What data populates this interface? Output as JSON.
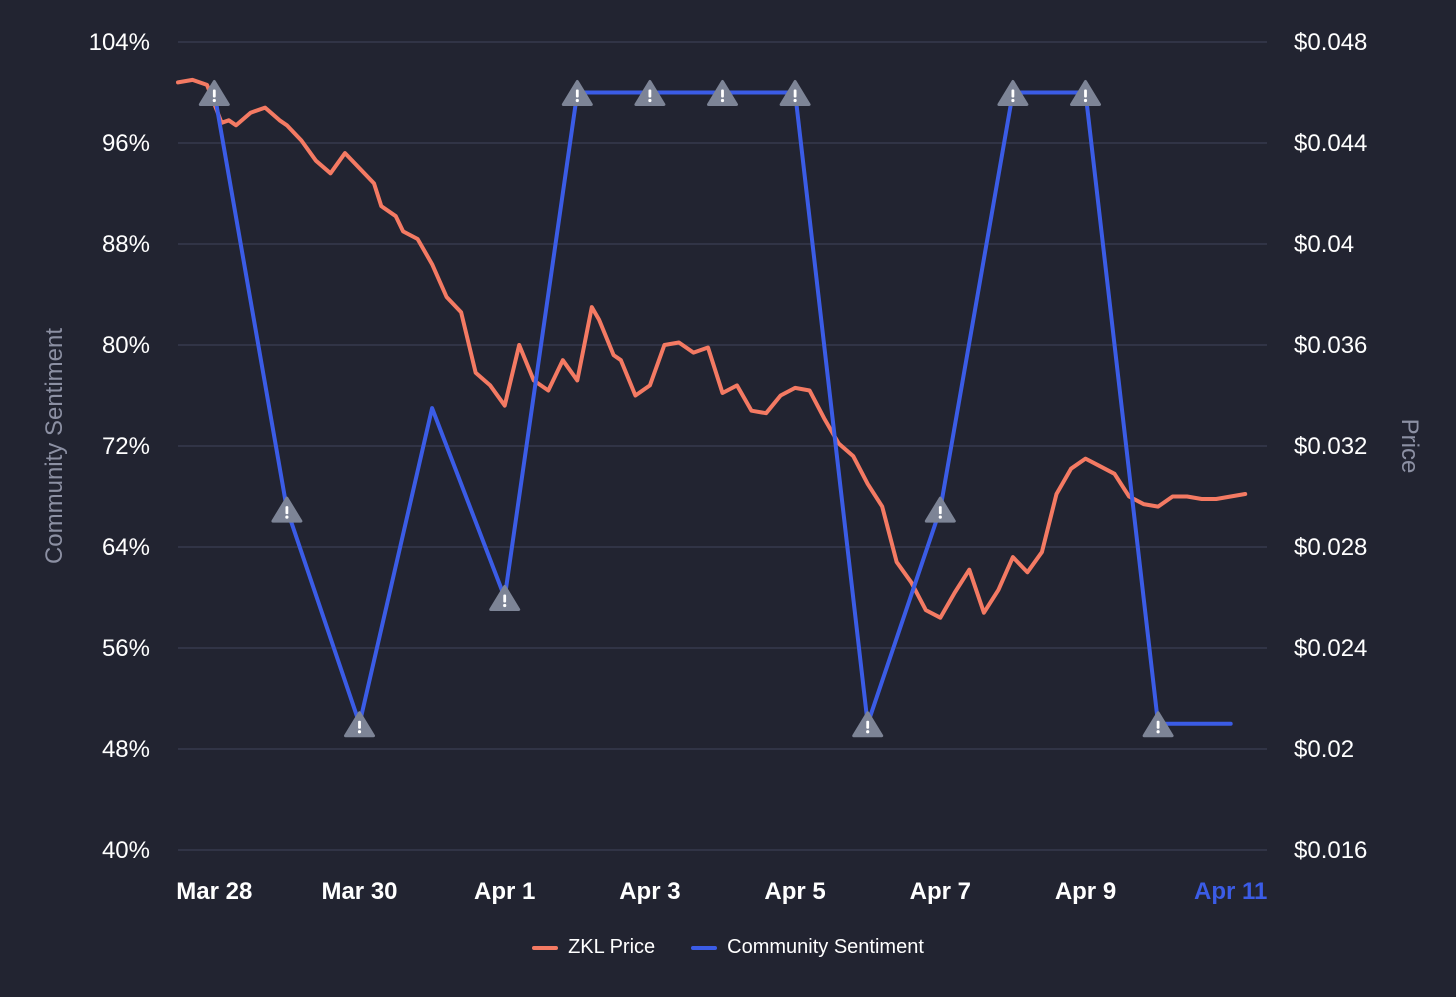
{
  "chart_data": {
    "type": "line",
    "x_ticks": [
      "Mar 28",
      "Mar 30",
      "Apr 1",
      "Apr 3",
      "Apr 5",
      "Apr 7",
      "Apr 9",
      "Apr 11"
    ],
    "highlighted_tick": "Apr 11",
    "left_axis": {
      "label": "Community Sentiment",
      "ticks": [
        "104%",
        "96%",
        "88%",
        "80%",
        "72%",
        "64%",
        "56%",
        "48%",
        "40%"
      ],
      "range": [
        40,
        104
      ]
    },
    "right_axis": {
      "label": "Price",
      "ticks": [
        "$0.048",
        "$0.044",
        "$0.04",
        "$0.036",
        "$0.032",
        "$0.028",
        "$0.024",
        "$0.02",
        "$0.016"
      ],
      "range": [
        0.016,
        0.048
      ]
    },
    "x_range_days": [
      -0.5,
      14.5
    ],
    "series": [
      {
        "name": "ZKL Price",
        "color": "#f47a63",
        "axis": "right",
        "x": [
          -0.5,
          -0.3,
          -0.1,
          0.1,
          0.2,
          0.3,
          0.5,
          0.7,
          0.9,
          1.0,
          1.2,
          1.4,
          1.6,
          1.8,
          2.0,
          2.2,
          2.3,
          2.5,
          2.6,
          2.8,
          3.0,
          3.2,
          3.4,
          3.6,
          3.8,
          4.0,
          4.2,
          4.4,
          4.6,
          4.8,
          5.0,
          5.2,
          5.3,
          5.5,
          5.6,
          5.8,
          6.0,
          6.2,
          6.4,
          6.6,
          6.8,
          7.0,
          7.2,
          7.4,
          7.6,
          7.8,
          8.0,
          8.2,
          8.4,
          8.6,
          8.8,
          9.0,
          9.2,
          9.4,
          9.6,
          9.8,
          10.0,
          10.2,
          10.4,
          10.6,
          10.8,
          11.0,
          11.2,
          11.4,
          11.6,
          11.8,
          12.0,
          12.2,
          12.4,
          12.6,
          12.8,
          13.0,
          13.2,
          13.4,
          13.6,
          13.8,
          14.0,
          14.2
        ],
        "values": [
          0.0464,
          0.0465,
          0.0463,
          0.0448,
          0.0449,
          0.0447,
          0.0452,
          0.0454,
          0.0449,
          0.0447,
          0.0441,
          0.0433,
          0.0428,
          0.0436,
          0.043,
          0.0424,
          0.0415,
          0.0411,
          0.0405,
          0.0402,
          0.0392,
          0.0379,
          0.0373,
          0.0349,
          0.0344,
          0.0336,
          0.036,
          0.0346,
          0.0342,
          0.0354,
          0.0346,
          0.0375,
          0.037,
          0.0356,
          0.0354,
          0.034,
          0.0344,
          0.036,
          0.0361,
          0.0357,
          0.0359,
          0.0341,
          0.0344,
          0.0334,
          0.0333,
          0.034,
          0.0343,
          0.0342,
          0.0331,
          0.0321,
          0.0316,
          0.0305,
          0.0296,
          0.0274,
          0.0266,
          0.0255,
          0.0252,
          0.0262,
          0.0271,
          0.0254,
          0.0263,
          0.0276,
          0.027,
          0.0278,
          0.0301,
          0.0311,
          0.0315,
          0.0312,
          0.0309,
          0.03,
          0.0297,
          0.0296,
          0.03,
          0.03,
          0.0299,
          0.0299,
          0.03,
          0.0301
        ]
      },
      {
        "name": "Community Sentiment",
        "color": "#3b5ce6",
        "axis": "left",
        "x": [
          0,
          1,
          2,
          3,
          4,
          5,
          6,
          7,
          8,
          9,
          10,
          11,
          12,
          13,
          14
        ],
        "values": [
          100,
          67,
          50,
          75,
          60,
          100,
          100,
          100,
          100,
          50,
          67,
          100,
          100,
          50,
          50
        ],
        "warning_marker_indices": [
          0,
          1,
          2,
          4,
          5,
          6,
          7,
          8,
          9,
          10,
          11,
          12,
          13
        ]
      }
    ]
  },
  "legend": {
    "price_label": "ZKL Price",
    "sentiment_label": "Community Sentiment"
  }
}
